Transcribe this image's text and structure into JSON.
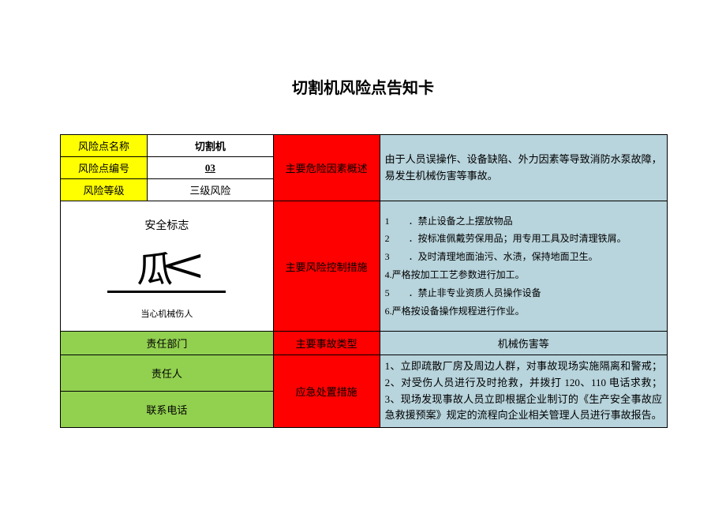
{
  "title": "切割机风险点告知卡",
  "labels": {
    "risk_name": "风险点名称",
    "risk_code": "风险点编号",
    "risk_level": "风险等级",
    "hazard_desc": "主要危险因素概述",
    "safety_sign": "安全标志",
    "control_measures": "主要风险控制措施",
    "dept": "责任部门",
    "accident_type": "主要事故类型",
    "person": "责任人",
    "phone": "联系电话",
    "emergency": "应急处置措施"
  },
  "values": {
    "risk_name": "切割机",
    "risk_code": "03",
    "risk_level": "三级风险",
    "safety_caption": "当心机械伤人",
    "accident_type": "机械伤害等"
  },
  "hazard_desc_text": "由于人员误操作、设备缺陷、外力因素等导致消防水泵故障，易发生机械伤害等事故。",
  "control_measures": [
    "1　　．禁止设备之上摆放物品",
    "2　　．按标准佩戴劳保用品；用专用工具及时清理铁屑。",
    "3　　．及时清理地面油污、水渍，保持地面卫生。",
    "4.严格按加工工艺参数进行加工。",
    "5　　．禁止非专业资质人员操作设备",
    "6.严格按设备操作规程进行作业。"
  ],
  "emergency_text": "1、立即疏散厂房及周边人群，对事故现场实施隔离和警戒；2、对受伤人员进行及时抢救，并拨打 120、110 电话求救；3、现场发现事故人员立即根据企业制订的《生产安全事故应急救援预案》规定的流程向企业相关管理人员进行事故报告。",
  "colors": {
    "yellow": "#ffff00",
    "red": "#ff0000",
    "blue": "#b8d4dc",
    "green": "#92d050",
    "white": "#ffffff"
  }
}
